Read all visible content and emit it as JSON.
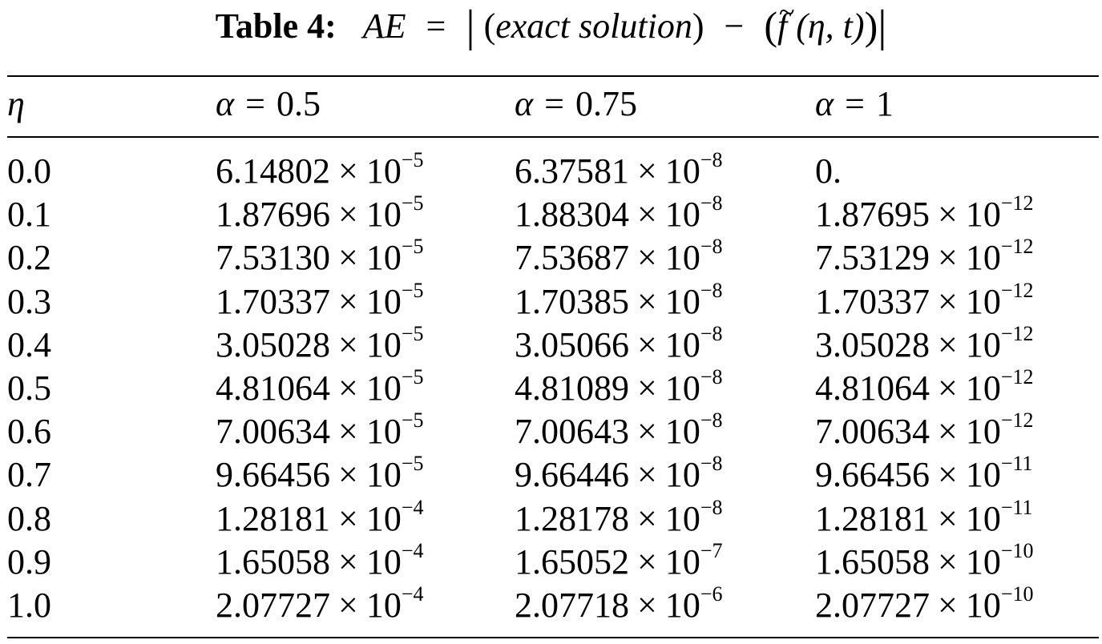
{
  "caption": {
    "label": "Table 4:",
    "lhs": "AE",
    "equals": "=",
    "bar": "|",
    "open_paren": "(",
    "exact_text": "exact solution",
    "close_paren": ")",
    "minus": "−",
    "f_symbol": "f",
    "f_args": "(η, t)"
  },
  "table": {
    "columns": [
      {
        "symbol": "η",
        "equals": "",
        "value": ""
      },
      {
        "symbol": "α",
        "equals": "=",
        "value": "0.5"
      },
      {
        "symbol": "α",
        "equals": "=",
        "value": "0.75"
      },
      {
        "symbol": "α",
        "equals": "=",
        "value": "1"
      }
    ],
    "times_sign": "×",
    "rows": [
      {
        "eta": "0.0",
        "c1": {
          "m": "6.14802",
          "b": "10",
          "e": "−5"
        },
        "c2": {
          "m": "6.37581",
          "b": "10",
          "e": "−8"
        },
        "c3": {
          "m": "0.",
          "b": "",
          "e": ""
        }
      },
      {
        "eta": "0.1",
        "c1": {
          "m": "1.87696",
          "b": "10",
          "e": "−5"
        },
        "c2": {
          "m": "1.88304",
          "b": "10",
          "e": "−8"
        },
        "c3": {
          "m": "1.87695",
          "b": "10",
          "e": "−12"
        }
      },
      {
        "eta": "0.2",
        "c1": {
          "m": "7.53130",
          "b": "10",
          "e": "−5"
        },
        "c2": {
          "m": "7.53687",
          "b": "10",
          "e": "−8"
        },
        "c3": {
          "m": "7.53129",
          "b": "10",
          "e": "−12"
        }
      },
      {
        "eta": "0.3",
        "c1": {
          "m": "1.70337",
          "b": "10",
          "e": "−5"
        },
        "c2": {
          "m": "1.70385",
          "b": "10",
          "e": "−8"
        },
        "c3": {
          "m": "1.70337",
          "b": "10",
          "e": "−12"
        }
      },
      {
        "eta": "0.4",
        "c1": {
          "m": "3.05028",
          "b": "10",
          "e": "−5"
        },
        "c2": {
          "m": "3.05066",
          "b": "10",
          "e": "−8"
        },
        "c3": {
          "m": "3.05028",
          "b": "10",
          "e": "−12"
        }
      },
      {
        "eta": "0.5",
        "c1": {
          "m": "4.81064",
          "b": "10",
          "e": "−5"
        },
        "c2": {
          "m": "4.81089",
          "b": "10",
          "e": "−8"
        },
        "c3": {
          "m": "4.81064",
          "b": "10",
          "e": "−12"
        }
      },
      {
        "eta": "0.6",
        "c1": {
          "m": "7.00634",
          "b": "10",
          "e": "−5"
        },
        "c2": {
          "m": "7.00643",
          "b": "10",
          "e": "−8"
        },
        "c3": {
          "m": "7.00634",
          "b": "10",
          "e": "−12"
        }
      },
      {
        "eta": "0.7",
        "c1": {
          "m": "9.66456",
          "b": "10",
          "e": "−5"
        },
        "c2": {
          "m": "9.66446",
          "b": "10",
          "e": "−8"
        },
        "c3": {
          "m": "9.66456",
          "b": "10",
          "e": "−11"
        }
      },
      {
        "eta": "0.8",
        "c1": {
          "m": "1.28181",
          "b": "10",
          "e": "−4"
        },
        "c2": {
          "m": "1.28178",
          "b": "10",
          "e": "−8"
        },
        "c3": {
          "m": "1.28181",
          "b": "10",
          "e": "−11"
        }
      },
      {
        "eta": "0.9",
        "c1": {
          "m": "1.65058",
          "b": "10",
          "e": "−4"
        },
        "c2": {
          "m": "1.65052",
          "b": "10",
          "e": "−7"
        },
        "c3": {
          "m": "1.65058",
          "b": "10",
          "e": "−10"
        }
      },
      {
        "eta": "1.0",
        "c1": {
          "m": "2.07727",
          "b": "10",
          "e": "−4"
        },
        "c2": {
          "m": "2.07718",
          "b": "10",
          "e": "−6"
        },
        "c3": {
          "m": "2.07727",
          "b": "10",
          "e": "−10"
        }
      }
    ]
  }
}
